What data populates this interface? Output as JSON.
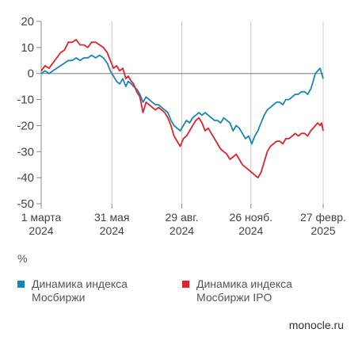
{
  "chart_data": {
    "type": "line",
    "title": "",
    "xlabel": "",
    "ylabel": "%",
    "ylim": [
      -50,
      20
    ],
    "yticks": [
      20,
      10,
      0,
      -10,
      -20,
      -30,
      -40,
      -50
    ],
    "xlim": [
      "2024-03-01",
      "2025-02-27"
    ],
    "xticks": [
      {
        "date": "2024-03-01",
        "label": [
          "1 марта",
          "2024"
        ]
      },
      {
        "date": "2024-05-31",
        "label": [
          "31 мая",
          "2024"
        ]
      },
      {
        "date": "2024-08-29",
        "label": [
          "29 авг.",
          "2024"
        ]
      },
      {
        "date": "2024-11-26",
        "label": [
          "26 нояб.",
          "2024"
        ]
      },
      {
        "date": "2025-02-27",
        "label": [
          "27 февр.",
          "2025"
        ]
      }
    ],
    "grid": "vertical",
    "legend_position": "bottom",
    "series": [
      {
        "name": "Динамика индекса Мосбиржи",
        "color": "#1a85b3",
        "points": [
          [
            "2024-03-01",
            0
          ],
          [
            "2024-03-06",
            1
          ],
          [
            "2024-03-11",
            0
          ],
          [
            "2024-03-16",
            1
          ],
          [
            "2024-03-21",
            2
          ],
          [
            "2024-03-26",
            3
          ],
          [
            "2024-03-31",
            4
          ],
          [
            "2024-04-05",
            5
          ],
          [
            "2024-04-10",
            5
          ],
          [
            "2024-04-15",
            6
          ],
          [
            "2024-04-20",
            5
          ],
          [
            "2024-04-25",
            6
          ],
          [
            "2024-04-30",
            6
          ],
          [
            "2024-05-05",
            7
          ],
          [
            "2024-05-10",
            6
          ],
          [
            "2024-05-15",
            7
          ],
          [
            "2024-05-20",
            6
          ],
          [
            "2024-05-25",
            4
          ],
          [
            "2024-05-29",
            1
          ],
          [
            "2024-06-02",
            -1
          ],
          [
            "2024-06-06",
            -3
          ],
          [
            "2024-06-10",
            -4
          ],
          [
            "2024-06-14",
            -2
          ],
          [
            "2024-06-18",
            -5
          ],
          [
            "2024-06-21",
            -3
          ],
          [
            "2024-06-25",
            -4
          ],
          [
            "2024-06-28",
            -5
          ],
          [
            "2024-07-02",
            -6
          ],
          [
            "2024-07-06",
            -8
          ],
          [
            "2024-07-10",
            -11
          ],
          [
            "2024-07-14",
            -9
          ],
          [
            "2024-07-18",
            -10
          ],
          [
            "2024-07-22",
            -11
          ],
          [
            "2024-07-26",
            -12
          ],
          [
            "2024-07-30",
            -12
          ],
          [
            "2024-08-03",
            -13
          ],
          [
            "2024-08-07",
            -14
          ],
          [
            "2024-08-11",
            -15
          ],
          [
            "2024-08-15",
            -18
          ],
          [
            "2024-08-19",
            -20
          ],
          [
            "2024-08-23",
            -21
          ],
          [
            "2024-08-27",
            -22
          ],
          [
            "2024-08-31",
            -20
          ],
          [
            "2024-09-04",
            -18
          ],
          [
            "2024-09-08",
            -19
          ],
          [
            "2024-09-12",
            -17
          ],
          [
            "2024-09-16",
            -16
          ],
          [
            "2024-09-20",
            -15
          ],
          [
            "2024-09-24",
            -16
          ],
          [
            "2024-09-28",
            -15
          ],
          [
            "2024-10-02",
            -16
          ],
          [
            "2024-10-06",
            -17
          ],
          [
            "2024-10-10",
            -18
          ],
          [
            "2024-10-14",
            -18
          ],
          [
            "2024-10-18",
            -19
          ],
          [
            "2024-10-22",
            -17
          ],
          [
            "2024-10-26",
            -18
          ],
          [
            "2024-10-30",
            -19
          ],
          [
            "2024-11-03",
            -22
          ],
          [
            "2024-11-07",
            -20
          ],
          [
            "2024-11-11",
            -21
          ],
          [
            "2024-11-15",
            -23
          ],
          [
            "2024-11-19",
            -25
          ],
          [
            "2024-11-23",
            -24
          ],
          [
            "2024-11-27",
            -27
          ],
          [
            "2024-12-01",
            -24
          ],
          [
            "2024-12-05",
            -22
          ],
          [
            "2024-12-09",
            -19
          ],
          [
            "2024-12-13",
            -16
          ],
          [
            "2024-12-17",
            -14
          ],
          [
            "2024-12-21",
            -13
          ],
          [
            "2024-12-25",
            -12
          ],
          [
            "2024-12-29",
            -11
          ],
          [
            "2025-01-02",
            -11
          ],
          [
            "2025-01-06",
            -12
          ],
          [
            "2025-01-10",
            -10
          ],
          [
            "2025-01-14",
            -10
          ],
          [
            "2025-01-18",
            -9
          ],
          [
            "2025-01-22",
            -8
          ],
          [
            "2025-01-26",
            -8
          ],
          [
            "2025-01-30",
            -7
          ],
          [
            "2025-02-03",
            -7
          ],
          [
            "2025-02-07",
            -8
          ],
          [
            "2025-02-11",
            -6
          ],
          [
            "2025-02-14",
            -3
          ],
          [
            "2025-02-17",
            0
          ],
          [
            "2025-02-20",
            1
          ],
          [
            "2025-02-23",
            2
          ],
          [
            "2025-02-25",
            0
          ],
          [
            "2025-02-27",
            -2
          ]
        ]
      },
      {
        "name": "Динамика индекса Мосбиржи IPO",
        "color": "#d9252e",
        "points": [
          [
            "2024-03-01",
            1
          ],
          [
            "2024-03-06",
            3
          ],
          [
            "2024-03-11",
            2
          ],
          [
            "2024-03-16",
            4
          ],
          [
            "2024-03-21",
            6
          ],
          [
            "2024-03-26",
            8
          ],
          [
            "2024-03-31",
            9
          ],
          [
            "2024-04-05",
            12
          ],
          [
            "2024-04-10",
            12
          ],
          [
            "2024-04-15",
            13
          ],
          [
            "2024-04-20",
            11
          ],
          [
            "2024-04-25",
            11
          ],
          [
            "2024-04-30",
            10
          ],
          [
            "2024-05-05",
            12
          ],
          [
            "2024-05-10",
            12
          ],
          [
            "2024-05-15",
            11
          ],
          [
            "2024-05-20",
            10
          ],
          [
            "2024-05-25",
            8
          ],
          [
            "2024-05-29",
            5
          ],
          [
            "2024-06-02",
            2
          ],
          [
            "2024-06-06",
            3
          ],
          [
            "2024-06-10",
            1
          ],
          [
            "2024-06-14",
            2
          ],
          [
            "2024-06-18",
            -2
          ],
          [
            "2024-06-21",
            -1
          ],
          [
            "2024-06-25",
            -3
          ],
          [
            "2024-06-28",
            -4
          ],
          [
            "2024-07-02",
            -7
          ],
          [
            "2024-07-06",
            -9
          ],
          [
            "2024-07-10",
            -15
          ],
          [
            "2024-07-14",
            -11
          ],
          [
            "2024-07-18",
            -12
          ],
          [
            "2024-07-22",
            -13
          ],
          [
            "2024-07-26",
            -14
          ],
          [
            "2024-07-30",
            -13
          ],
          [
            "2024-08-03",
            -14
          ],
          [
            "2024-08-07",
            -15
          ],
          [
            "2024-08-11",
            -17
          ],
          [
            "2024-08-15",
            -20
          ],
          [
            "2024-08-19",
            -24
          ],
          [
            "2024-08-23",
            -26
          ],
          [
            "2024-08-27",
            -28
          ],
          [
            "2024-08-31",
            -25
          ],
          [
            "2024-09-04",
            -24
          ],
          [
            "2024-09-08",
            -22
          ],
          [
            "2024-09-12",
            -20
          ],
          [
            "2024-09-16",
            -18
          ],
          [
            "2024-09-20",
            -17
          ],
          [
            "2024-09-24",
            -19
          ],
          [
            "2024-09-28",
            -22
          ],
          [
            "2024-10-02",
            -21
          ],
          [
            "2024-10-06",
            -23
          ],
          [
            "2024-10-10",
            -25
          ],
          [
            "2024-10-14",
            -27
          ],
          [
            "2024-10-18",
            -29
          ],
          [
            "2024-10-22",
            -30
          ],
          [
            "2024-10-26",
            -31
          ],
          [
            "2024-10-30",
            -33
          ],
          [
            "2024-11-03",
            -32
          ],
          [
            "2024-11-07",
            -31
          ],
          [
            "2024-11-11",
            -33
          ],
          [
            "2024-11-15",
            -35
          ],
          [
            "2024-11-19",
            -36
          ],
          [
            "2024-11-23",
            -37
          ],
          [
            "2024-11-27",
            -38
          ],
          [
            "2024-12-01",
            -39
          ],
          [
            "2024-12-05",
            -40
          ],
          [
            "2024-12-09",
            -38
          ],
          [
            "2024-12-13",
            -34
          ],
          [
            "2024-12-17",
            -30
          ],
          [
            "2024-12-21",
            -28
          ],
          [
            "2024-12-25",
            -27
          ],
          [
            "2024-12-29",
            -26
          ],
          [
            "2025-01-02",
            -26
          ],
          [
            "2025-01-06",
            -27
          ],
          [
            "2025-01-10",
            -25
          ],
          [
            "2025-01-14",
            -25
          ],
          [
            "2025-01-18",
            -24
          ],
          [
            "2025-01-22",
            -23
          ],
          [
            "2025-01-26",
            -24
          ],
          [
            "2025-01-30",
            -23
          ],
          [
            "2025-02-03",
            -23
          ],
          [
            "2025-02-07",
            -24
          ],
          [
            "2025-02-11",
            -22
          ],
          [
            "2025-02-14",
            -21
          ],
          [
            "2025-02-17",
            -20
          ],
          [
            "2025-02-20",
            -19
          ],
          [
            "2025-02-23",
            -20
          ],
          [
            "2025-02-25",
            -19
          ],
          [
            "2025-02-27",
            -22
          ]
        ]
      }
    ]
  },
  "unit_label": "%",
  "source": "monocle.ru"
}
